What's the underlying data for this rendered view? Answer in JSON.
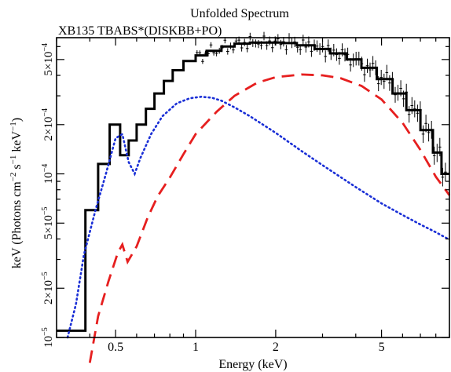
{
  "chart_data": {
    "type": "line",
    "title": "Unfolded Spectrum",
    "subtitle": "XB135 TBABS*(DISKBB+PO)",
    "xlabel": "Energy (keV)",
    "ylabel_parts": [
      "keV (Photons cm",
      "−2",
      " s",
      "−1",
      " keV",
      "−1",
      ")"
    ],
    "x_scale": "log",
    "y_scale": "log",
    "xlim": [
      0.3,
      9.0
    ],
    "ylim": [
      1e-05,
      0.00068
    ],
    "x_ticks": [
      {
        "value": 0.5,
        "label": "0.5"
      },
      {
        "value": 1,
        "label": "1"
      },
      {
        "value": 2,
        "label": "2"
      },
      {
        "value": 5,
        "label": "5"
      }
    ],
    "y_ticks": [
      {
        "value": 1e-05,
        "mant": "10",
        "exp": "−5"
      },
      {
        "value": 2e-05,
        "mant": "2×10",
        "exp": "−5"
      },
      {
        "value": 5e-05,
        "mant": "5×10",
        "exp": "−5"
      },
      {
        "value": 0.0001,
        "mant": "10",
        "exp": "−4"
      },
      {
        "value": 0.0002,
        "mant": "2×10",
        "exp": "−4"
      },
      {
        "value": 0.0005,
        "mant": "5×10",
        "exp": "−4"
      }
    ],
    "series": [
      {
        "key": "total",
        "color": "#000000",
        "style": "step",
        "x": [
          0.3,
          0.355,
          0.385,
          0.43,
          0.475,
          0.52,
          0.56,
          0.6,
          0.65,
          0.7,
          0.76,
          0.82,
          0.9,
          1.0,
          1.1,
          1.25,
          1.4,
          1.6,
          1.8,
          2.1,
          2.4,
          2.8,
          3.2,
          3.7,
          4.2,
          4.8,
          5.5,
          6.2,
          7.0,
          7.8,
          8.4,
          9.0
        ],
        "y": [
          1.1e-05,
          1.1e-05,
          6e-05,
          0.000115,
          0.0002,
          0.00013,
          0.00016,
          0.0002,
          0.00025,
          0.00031,
          0.00037,
          0.00043,
          0.00049,
          0.00053,
          0.000565,
          0.0006,
          0.000625,
          0.000635,
          0.000635,
          0.00063,
          0.00061,
          0.00058,
          0.000545,
          0.0005,
          0.000445,
          0.00038,
          0.00031,
          0.000245,
          0.000185,
          0.000135,
          0.0001,
          0.0001
        ]
      },
      {
        "key": "diskbb",
        "color": "#1a2fd6",
        "style": "dotted",
        "x": [
          0.33,
          0.355,
          0.38,
          0.42,
          0.46,
          0.5,
          0.53,
          0.56,
          0.59,
          0.62,
          0.68,
          0.75,
          0.85,
          0.95,
          1.05,
          1.15,
          1.25,
          1.4,
          1.6,
          2.0,
          2.5,
          3.0,
          4.0,
          5.0,
          6.0,
          7.0,
          8.0,
          8.9
        ],
        "y": [
          1e-05,
          1.6e-05,
          3.2e-05,
          6e-05,
          0.0001,
          0.000165,
          0.000175,
          0.000118,
          0.0001,
          0.000125,
          0.000175,
          0.000225,
          0.00027,
          0.00029,
          0.000296,
          0.000292,
          0.00028,
          0.000255,
          0.000225,
          0.000178,
          0.000138,
          0.000113,
          8.3e-05,
          6.6e-05,
          5.6e-05,
          4.9e-05,
          4.4e-05,
          4e-05
        ]
      },
      {
        "key": "powerlaw",
        "color": "#e61f1f",
        "style": "dashed",
        "x": [
          0.4,
          0.43,
          0.47,
          0.51,
          0.53,
          0.555,
          0.6,
          0.66,
          0.72,
          0.8,
          0.9,
          1.0,
          1.2,
          1.4,
          1.7,
          2.0,
          2.5,
          3.0,
          3.5,
          4.2,
          5.0,
          6.0,
          7.0,
          8.0,
          9.0
        ],
        "y": [
          7e-06,
          1.35e-05,
          2.2e-05,
          3.3e-05,
          3.7e-05,
          2.9e-05,
          3.6e-05,
          5.4e-05,
          7.3e-05,
          9.5e-05,
          0.000132,
          0.000175,
          0.00024,
          0.0003,
          0.00036,
          0.00039,
          0.000405,
          0.0004,
          0.000385,
          0.000345,
          0.000285,
          0.000205,
          0.00014,
          9.6e-05,
          7.4e-05
        ]
      }
    ]
  }
}
